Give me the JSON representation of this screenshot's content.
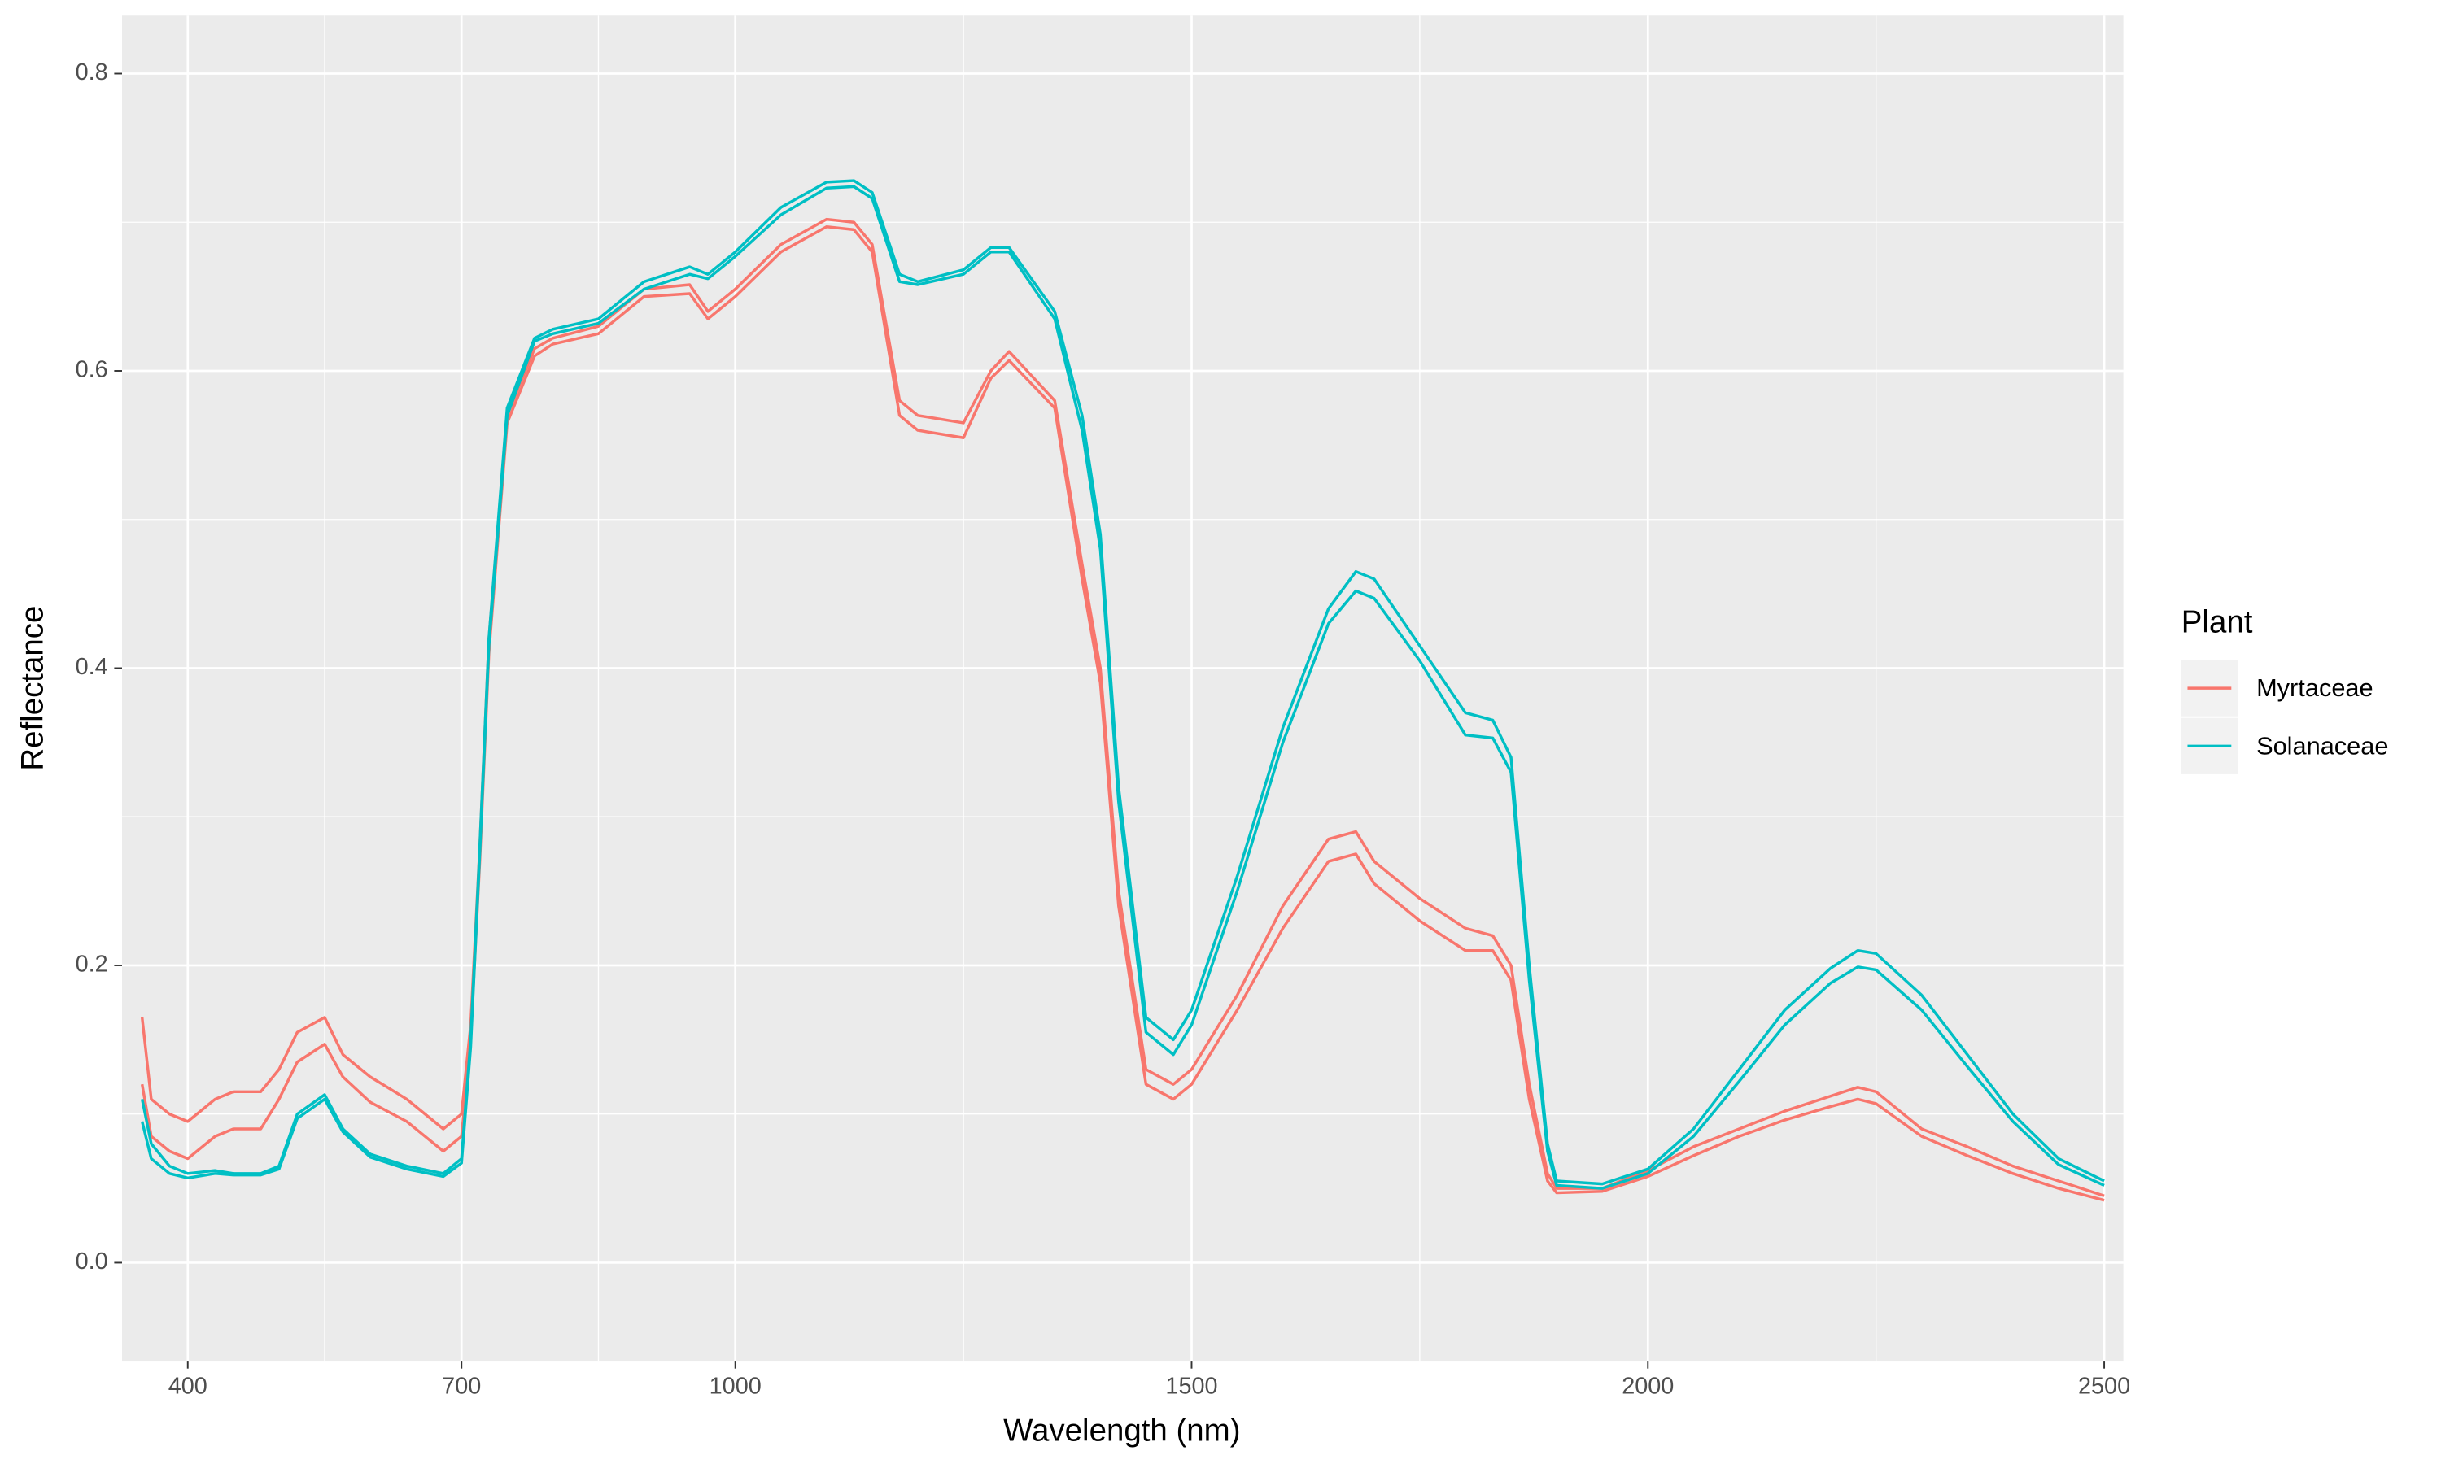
{
  "chart_data": {
    "type": "line",
    "x_label": "Wavelength (nm)",
    "y_label": "Reflectance",
    "legend_title": "Plant",
    "legend_position": "right",
    "grid": true,
    "xlim": [
      328,
      2521
    ],
    "ylim": [
      -0.066,
      0.839
    ],
    "xticks": [
      400,
      700,
      1000,
      1500,
      2000,
      2500
    ],
    "xminor_ticks": [
      550,
      850,
      1250,
      1750,
      2250
    ],
    "yticks": [
      {
        "value": 0,
        "label": "0.0"
      },
      0.2,
      0.4,
      0.6,
      0.8
    ],
    "yminor_ticks": [
      0.1,
      0.3,
      0.5,
      0.7
    ],
    "x": [
      350,
      360,
      380,
      400,
      430,
      450,
      480,
      500,
      520,
      550,
      570,
      600,
      640,
      680,
      700,
      710,
      720,
      730,
      750,
      780,
      800,
      850,
      900,
      950,
      970,
      1000,
      1050,
      1100,
      1130,
      1150,
      1180,
      1200,
      1250,
      1280,
      1300,
      1350,
      1380,
      1400,
      1420,
      1450,
      1480,
      1500,
      1550,
      1600,
      1650,
      1680,
      1700,
      1750,
      1800,
      1830,
      1850,
      1870,
      1890,
      1900,
      1950,
      2000,
      2050,
      2100,
      2150,
      2200,
      2230,
      2250,
      2300,
      2350,
      2400,
      2450,
      2500
    ],
    "series": [
      {
        "name": "Myrtaceae",
        "color": "#f8766d",
        "lines": [
          [
            0.165,
            0.11,
            0.1,
            0.095,
            0.11,
            0.115,
            0.115,
            0.13,
            0.155,
            0.165,
            0.14,
            0.125,
            0.11,
            0.09,
            0.1,
            0.16,
            0.28,
            0.42,
            0.57,
            0.615,
            0.622,
            0.63,
            0.655,
            0.658,
            0.64,
            0.655,
            0.685,
            0.702,
            0.7,
            0.685,
            0.58,
            0.57,
            0.565,
            0.6,
            0.613,
            0.58,
            0.47,
            0.4,
            0.25,
            0.13,
            0.12,
            0.13,
            0.18,
            0.24,
            0.285,
            0.29,
            0.27,
            0.245,
            0.225,
            0.22,
            0.2,
            0.12,
            0.06,
            0.05,
            0.05,
            0.062,
            0.078,
            0.09,
            0.102,
            0.112,
            0.118,
            0.115,
            0.09,
            0.078,
            0.065,
            0.055,
            0.045
          ],
          [
            0.12,
            0.085,
            0.075,
            0.07,
            0.085,
            0.09,
            0.09,
            0.11,
            0.135,
            0.147,
            0.125,
            0.108,
            0.095,
            0.075,
            0.085,
            0.15,
            0.27,
            0.41,
            0.565,
            0.61,
            0.618,
            0.625,
            0.65,
            0.652,
            0.635,
            0.65,
            0.68,
            0.697,
            0.695,
            0.68,
            0.57,
            0.56,
            0.555,
            0.595,
            0.607,
            0.575,
            0.46,
            0.39,
            0.24,
            0.12,
            0.11,
            0.12,
            0.17,
            0.225,
            0.27,
            0.275,
            0.255,
            0.23,
            0.21,
            0.21,
            0.19,
            0.11,
            0.055,
            0.047,
            0.048,
            0.058,
            0.072,
            0.085,
            0.096,
            0.105,
            0.11,
            0.107,
            0.085,
            0.072,
            0.06,
            0.05,
            0.042
          ]
        ]
      },
      {
        "name": "Solanaceae",
        "color": "#00bfc4",
        "lines": [
          [
            0.11,
            0.08,
            0.065,
            0.06,
            0.062,
            0.06,
            0.06,
            0.065,
            0.1,
            0.113,
            0.09,
            0.073,
            0.065,
            0.06,
            0.07,
            0.15,
            0.28,
            0.42,
            0.575,
            0.622,
            0.628,
            0.635,
            0.66,
            0.67,
            0.665,
            0.68,
            0.71,
            0.727,
            0.728,
            0.72,
            0.665,
            0.66,
            0.668,
            0.683,
            0.683,
            0.64,
            0.57,
            0.49,
            0.32,
            0.165,
            0.15,
            0.17,
            0.26,
            0.36,
            0.44,
            0.465,
            0.46,
            0.415,
            0.37,
            0.365,
            0.34,
            0.2,
            0.08,
            0.055,
            0.053,
            0.063,
            0.09,
            0.13,
            0.17,
            0.198,
            0.21,
            0.208,
            0.18,
            0.14,
            0.1,
            0.07,
            0.055
          ],
          [
            0.095,
            0.07,
            0.06,
            0.057,
            0.06,
            0.059,
            0.059,
            0.063,
            0.097,
            0.11,
            0.088,
            0.071,
            0.063,
            0.058,
            0.067,
            0.145,
            0.275,
            0.415,
            0.57,
            0.62,
            0.625,
            0.632,
            0.655,
            0.665,
            0.662,
            0.677,
            0.705,
            0.723,
            0.724,
            0.716,
            0.66,
            0.658,
            0.665,
            0.68,
            0.68,
            0.635,
            0.56,
            0.48,
            0.31,
            0.155,
            0.14,
            0.16,
            0.25,
            0.35,
            0.43,
            0.452,
            0.447,
            0.405,
            0.355,
            0.353,
            0.33,
            0.19,
            0.075,
            0.052,
            0.05,
            0.06,
            0.085,
            0.122,
            0.16,
            0.188,
            0.199,
            0.197,
            0.17,
            0.132,
            0.095,
            0.066,
            0.052
          ]
        ]
      }
    ]
  }
}
